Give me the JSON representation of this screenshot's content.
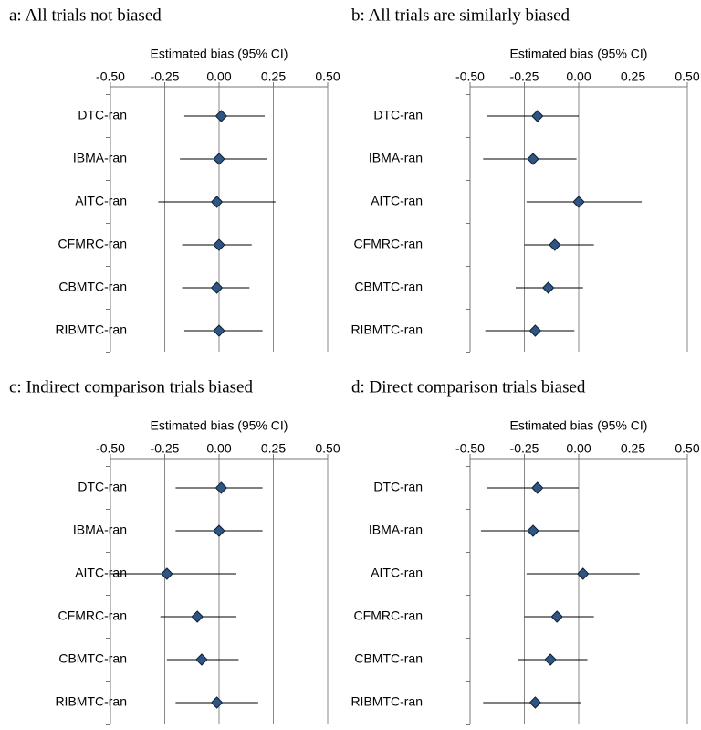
{
  "chart_data": [
    {
      "type": "forest",
      "title": "a: All trials not biased",
      "x_label": "Estimated bias (95% CI)",
      "categories": [
        "DTC-ran",
        "IBMA-ran",
        "AITC-ran",
        "CFMRC-ran",
        "CBMTC-ran",
        "RIBMTC-ran"
      ],
      "values": [
        0.01,
        0.0,
        -0.01,
        0.0,
        -0.01,
        0.0
      ],
      "lower": [
        -0.16,
        -0.18,
        -0.28,
        -0.17,
        -0.17,
        -0.16
      ],
      "upper": [
        0.21,
        0.22,
        0.26,
        0.15,
        0.14,
        0.2
      ],
      "color": "#2f5583",
      "xlim": [
        -0.5,
        0.5
      ],
      "xticks": [
        {
          "value": -0.5,
          "label": "-0.50"
        },
        {
          "value": -0.25,
          "label": "-0.25"
        },
        {
          "value": 0,
          "label": "0.00"
        },
        {
          "value": 0.25,
          "label": "0.25"
        },
        {
          "value": 0.5,
          "label": "0.50"
        }
      ],
      "grid": true
    },
    {
      "type": "forest",
      "title": "b: All trials are similarly biased",
      "x_label": "Estimated bias (95% CI)",
      "categories": [
        "DTC-ran",
        "IBMA-ran",
        "AITC-ran",
        "CFMRC-ran",
        "CBMTC-ran",
        "RIBMTC-ran"
      ],
      "values": [
        -0.19,
        -0.21,
        0.0,
        -0.11,
        -0.14,
        -0.2
      ],
      "lower": [
        -0.42,
        -0.44,
        -0.24,
        -0.25,
        -0.29,
        -0.43
      ],
      "upper": [
        0.0,
        -0.01,
        0.29,
        0.07,
        0.02,
        -0.02
      ],
      "color": "#2f5583",
      "xlim": [
        -0.5,
        0.5
      ],
      "xticks": [
        {
          "value": -0.5,
          "label": "-0.50"
        },
        {
          "value": -0.25,
          "label": "-0.25"
        },
        {
          "value": 0,
          "label": "0.00"
        },
        {
          "value": 0.25,
          "label": "0.25"
        },
        {
          "value": 0.5,
          "label": "0.50"
        }
      ],
      "grid": true
    },
    {
      "type": "forest",
      "title": "c: Indirect comparison trials biased",
      "x_label": "Estimated bias (95% CI)",
      "categories": [
        "DTC-ran",
        "IBMA-ran",
        "AITC-ran",
        "CFMRC-ran",
        "CBMTC-ran",
        "RIBMTC-ran"
      ],
      "values": [
        0.01,
        0.0,
        -0.24,
        -0.1,
        -0.08,
        -0.01
      ],
      "lower": [
        -0.2,
        -0.2,
        -0.5,
        -0.27,
        -0.24,
        -0.2
      ],
      "upper": [
        0.2,
        0.2,
        0.08,
        0.08,
        0.09,
        0.18
      ],
      "color": "#2f5583",
      "xlim": [
        -0.5,
        0.5
      ],
      "xticks": [
        {
          "value": -0.5,
          "label": "-0.50"
        },
        {
          "value": -0.25,
          "label": "-0.25"
        },
        {
          "value": 0,
          "label": "0.00"
        },
        {
          "value": 0.25,
          "label": "0.25"
        },
        {
          "value": 0.5,
          "label": "0.50"
        }
      ],
      "grid": true
    },
    {
      "type": "forest",
      "title": "d: Direct comparison trials biased",
      "x_label": "Estimated bias (95% CI)",
      "categories": [
        "DTC-ran",
        "IBMA-ran",
        "AITC-ran",
        "CFMRC-ran",
        "CBMTC-ran",
        "RIBMTC-ran"
      ],
      "values": [
        -0.19,
        -0.21,
        0.02,
        -0.1,
        -0.13,
        -0.2
      ],
      "lower": [
        -0.42,
        -0.45,
        -0.24,
        -0.25,
        -0.28,
        -0.44
      ],
      "upper": [
        0.0,
        0.0,
        0.28,
        0.07,
        0.04,
        0.01
      ],
      "color": "#2f5583",
      "xlim": [
        -0.5,
        0.5
      ],
      "xticks": [
        {
          "value": -0.5,
          "label": "-0.50"
        },
        {
          "value": -0.25,
          "label": "-0.25"
        },
        {
          "value": 0,
          "label": "0.00"
        },
        {
          "value": 0.25,
          "label": "0.25"
        },
        {
          "value": 0.5,
          "label": "0.50"
        }
      ],
      "grid": true
    }
  ]
}
